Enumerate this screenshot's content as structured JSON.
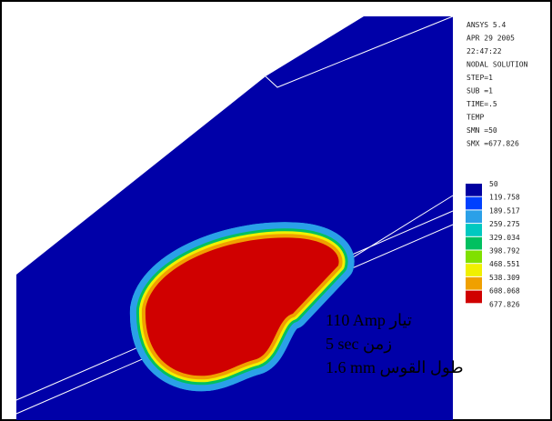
{
  "header": {
    "lines": [
      "ANSYS 5.4",
      "APR 29 2005",
      "22:47:22",
      "NODAL SOLUTION",
      "STEP=1",
      "SUB =1",
      "TIME=.5",
      "TEMP",
      "SMN =50",
      "SMX =677.826"
    ]
  },
  "legend": {
    "values": [
      50,
      119.758,
      189.517,
      259.275,
      329.034,
      398.792,
      468.551,
      538.309,
      608.068,
      677.826
    ],
    "colors": [
      "#0000a0",
      "#0040ff",
      "#2aa0e8",
      "#00c8c0",
      "#00c060",
      "#80e000",
      "#f0f000",
      "#f0a000",
      "#d00000"
    ]
  },
  "annotations": [
    "110 Amp تيار",
    "5 sec زمن",
    "1.6 mm طول القوس"
  ]
}
